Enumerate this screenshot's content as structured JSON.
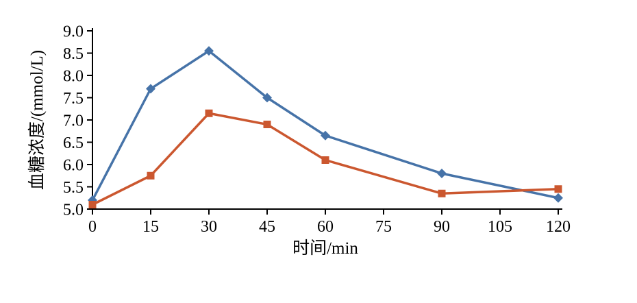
{
  "chart_data": {
    "type": "line",
    "title": "",
    "xlabel": "时间/min",
    "ylabel": "血糖浓度/(mmol/L)",
    "xlim": [
      0,
      120
    ],
    "ylim": [
      5.0,
      9.0
    ],
    "grid": false,
    "legend": "none",
    "xticks": [
      0,
      15,
      30,
      45,
      60,
      75,
      90,
      105,
      120
    ],
    "xtick_labels": [
      "0",
      "15",
      "30",
      "45",
      "60",
      "75",
      "90",
      "105",
      "120"
    ],
    "yticks": [
      5.0,
      5.5,
      6.0,
      6.5,
      7.0,
      7.5,
      8.0,
      8.5,
      9.0
    ],
    "ytick_labels": [
      "5.0",
      "5.5",
      "6.0",
      "6.5",
      "7.0",
      "7.5",
      "8.0",
      "8.5",
      "9.0"
    ],
    "x": [
      0,
      15,
      30,
      45,
      60,
      90,
      120
    ],
    "series": [
      {
        "name": "blue-series",
        "color": "#4673a8",
        "marker": "diamond",
        "values": [
          5.2,
          7.7,
          8.55,
          7.5,
          6.65,
          5.8,
          5.25
        ]
      },
      {
        "name": "orange-series",
        "color": "#cb572f",
        "marker": "square",
        "values": [
          5.1,
          5.75,
          7.15,
          6.9,
          6.1,
          5.35,
          5.45
        ]
      }
    ]
  },
  "style": {
    "axis_color": "#000000",
    "background": "#ffffff"
  }
}
